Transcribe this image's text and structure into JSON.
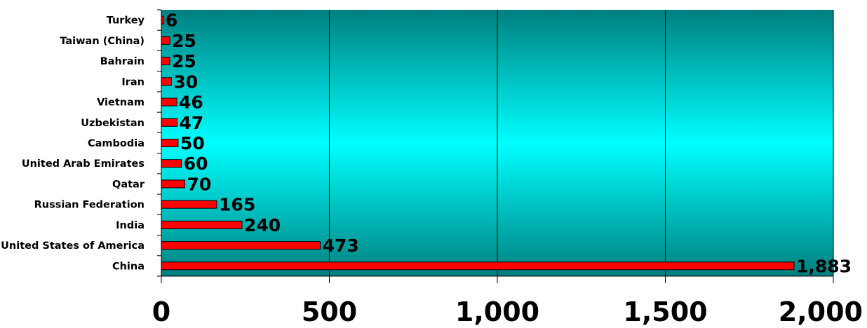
{
  "chart_data": {
    "type": "bar",
    "orientation": "horizontal",
    "title": "",
    "xlabel": "",
    "ylabel": "",
    "categories": [
      "Turkey",
      "Taiwan (China)",
      "Bahrain",
      "Iran",
      "Vietnam",
      "Uzbekistan",
      "Cambodia",
      "United Arab Emirates",
      "Qatar",
      "Russian Federation",
      "India",
      "United States of America",
      "China"
    ],
    "values": [
      6,
      25,
      25,
      30,
      46,
      47,
      50,
      60,
      70,
      165,
      240,
      473,
      1883
    ],
    "value_labels": [
      "6",
      "25",
      "25",
      "30",
      "46",
      "47",
      "50",
      "60",
      "70",
      "165",
      "240",
      "473",
      "1,883"
    ],
    "xlim": [
      0,
      2000
    ],
    "x_ticks": [
      0,
      500,
      1000,
      1500,
      2000
    ],
    "x_tick_labels": [
      "0",
      "500",
      "1,000",
      "1,500",
      "2,000"
    ],
    "grid": "vertical",
    "legend": "none",
    "colors": {
      "bar_fill": "#ff0000",
      "bar_stroke": "#000000",
      "plot_bg_edge": "#007f7f",
      "plot_bg_center": "#00ffff",
      "gridline": "#000000"
    }
  }
}
